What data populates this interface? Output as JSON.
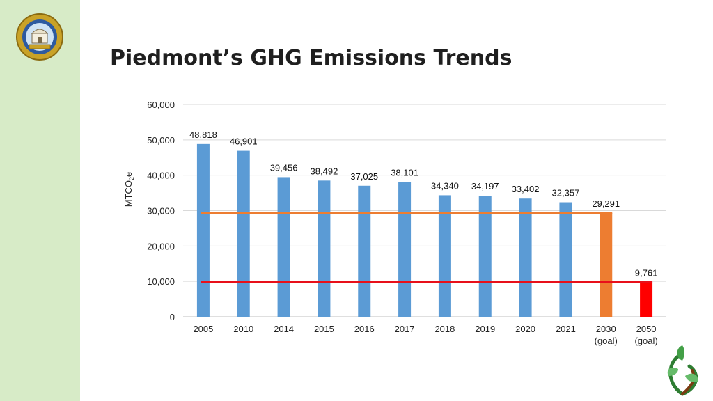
{
  "slide": {
    "title": "Piedmont’s GHG Emissions Trends"
  },
  "colors": {
    "side_band": "#d7ebc7",
    "bar_historic": "#5b9bd5",
    "bar_goal_2030": "#ed7d31",
    "bar_goal_2050": "#ff0000",
    "line_goal_2030": "#ed7d31",
    "line_goal_2050": "#e8101a",
    "gridline": "#d9d9d9"
  },
  "icons": {
    "seal": "city-seal-icon",
    "logo": "sprout-logo-icon"
  },
  "chart_data": {
    "type": "bar",
    "ylabel": "MTCO",
    "ylabel_sub": "2",
    "ylabel_suffix": "e",
    "xlabel": "",
    "ylim": [
      0,
      60000
    ],
    "yticks": [
      0,
      10000,
      20000,
      30000,
      40000,
      50000,
      60000
    ],
    "ytick_labels": [
      "0",
      "10,000",
      "20,000",
      "30,000",
      "40,000",
      "50,000",
      "60,000"
    ],
    "grid": true,
    "legend": "none",
    "categories": [
      [
        "2005"
      ],
      [
        "2010"
      ],
      [
        "2014"
      ],
      [
        "2015"
      ],
      [
        "2016"
      ],
      [
        "2017"
      ],
      [
        "2018"
      ],
      [
        "2019"
      ],
      [
        "2020"
      ],
      [
        "2021"
      ],
      [
        "2030",
        "(goal)"
      ],
      [
        "2050",
        "(goal)"
      ]
    ],
    "values": [
      48818,
      46901,
      39456,
      38492,
      37025,
      38101,
      34340,
      34197,
      33402,
      32357,
      29291,
      9761
    ],
    "data_labels": [
      "48,818",
      "46,901",
      "39,456",
      "38,492",
      "37,025",
      "38,101",
      "34,340",
      "34,197",
      "33,402",
      "32,357",
      "29,291",
      "9,761"
    ],
    "bar_colors": [
      "#5b9bd5",
      "#5b9bd5",
      "#5b9bd5",
      "#5b9bd5",
      "#5b9bd5",
      "#5b9bd5",
      "#5b9bd5",
      "#5b9bd5",
      "#5b9bd5",
      "#5b9bd5",
      "#ed7d31",
      "#ff0000"
    ],
    "reference_lines": [
      {
        "value": 29291,
        "color": "#ed7d31",
        "from_category": 0,
        "to_category": 10
      },
      {
        "value": 9761,
        "color": "#e8101a",
        "from_category": 0,
        "to_category": 11
      }
    ]
  }
}
